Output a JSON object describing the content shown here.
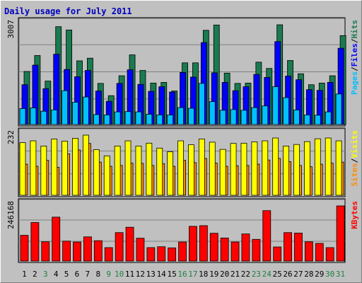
{
  "title": "Daily usage for July 2011",
  "colors": {
    "title": "#0000c0",
    "bg": "#c0c0c0",
    "panel": "#c0c0c0",
    "hits": "#1a7a50",
    "files": "#0000ff",
    "pages": "#00c0ff",
    "visits": "#ffff00",
    "sites": "#ff8c00",
    "kbytes": "#ff0000",
    "day_black": "#000000",
    "day_green": "#208040"
  },
  "chart_data": [
    {
      "type": "bar",
      "name": "hits-files-pages",
      "ymax_label": "3007",
      "ylim": [
        0,
        3007
      ],
      "legend": [
        "Pages",
        "/",
        "Files",
        "/",
        "Hits"
      ],
      "categories": [
        "1",
        "2",
        "3",
        "4",
        "5",
        "6",
        "7",
        "8",
        "9",
        "10",
        "11",
        "12",
        "13",
        "14",
        "15",
        "16",
        "17",
        "18",
        "19",
        "20",
        "21",
        "22",
        "23",
        "24",
        "25",
        "26",
        "27",
        "28",
        "29",
        "30",
        "31"
      ],
      "series": [
        {
          "name": "Hits",
          "values": [
            1600,
            2080,
            1310,
            2950,
            2850,
            1920,
            2000,
            1240,
            870,
            1470,
            2100,
            1630,
            1250,
            1270,
            1010,
            1860,
            1860,
            2840,
            3000,
            1550,
            1240,
            1250,
            1880,
            1690,
            3007,
            1930,
            1530,
            1200,
            1250,
            1470,
            2680
          ]
        },
        {
          "name": "Files",
          "values": [
            1200,
            1790,
            1080,
            2120,
            1660,
            1440,
            1630,
            1010,
            700,
            1240,
            1650,
            1210,
            1000,
            1140,
            980,
            1570,
            1430,
            2470,
            1560,
            1270,
            1020,
            1140,
            1510,
            1420,
            2500,
            1460,
            1350,
            1050,
            1030,
            1270,
            2300
          ]
        },
        {
          "name": "Pages",
          "values": [
            480,
            500,
            400,
            440,
            1020,
            670,
            830,
            300,
            290,
            380,
            390,
            380,
            310,
            290,
            290,
            510,
            490,
            1240,
            690,
            430,
            450,
            430,
            510,
            560,
            1140,
            810,
            440,
            290,
            280,
            380,
            920
          ]
        }
      ]
    },
    {
      "type": "bar",
      "name": "visits-sites",
      "ymax_label": "232",
      "ylim": [
        0,
        232
      ],
      "legend": [
        "Sites",
        "/",
        "Visits"
      ],
      "categories": [
        "1",
        "2",
        "3",
        "4",
        "5",
        "6",
        "7",
        "8",
        "9",
        "10",
        "11",
        "12",
        "13",
        "14",
        "15",
        "16",
        "17",
        "18",
        "19",
        "20",
        "21",
        "22",
        "23",
        "24",
        "25",
        "26",
        "27",
        "28",
        "29",
        "30",
        "31"
      ],
      "series": [
        {
          "name": "Visits",
          "values": [
            120,
            112,
            135,
            108,
            160,
            175,
            200,
            128,
            112,
            115,
            124,
            123,
            115,
            122,
            112,
            135,
            126,
            142,
            124,
            112,
            114,
            115,
            120,
            136,
            142,
            130,
            115,
            110,
            120,
            124,
            128
          ]
        },
        {
          "name": "Sites",
          "values": [
            203,
            210,
            190,
            217,
            209,
            220,
            232,
            176,
            152,
            190,
            210,
            190,
            201,
            182,
            168,
            210,
            195,
            217,
            205,
            177,
            200,
            201,
            206,
            210,
            221,
            190,
            196,
            207,
            218,
            221,
            210
          ]
        }
      ]
    },
    {
      "type": "bar",
      "name": "kbytes",
      "ymax_label": "246168",
      "ylim": [
        0,
        246168
      ],
      "legend": [
        "KBytes"
      ],
      "categories": [
        "1",
        "2",
        "3",
        "4",
        "5",
        "6",
        "7",
        "8",
        "9",
        "10",
        "11",
        "12",
        "13",
        "14",
        "15",
        "16",
        "17",
        "18",
        "19",
        "20",
        "21",
        "22",
        "23",
        "24",
        "25",
        "26",
        "27",
        "28",
        "29",
        "30",
        "31"
      ],
      "series": [
        {
          "name": "KBytes",
          "values": [
            115000,
            172000,
            86000,
            196000,
            89000,
            85000,
            108000,
            91000,
            60000,
            127000,
            151000,
            102000,
            60000,
            64000,
            59000,
            85000,
            155000,
            158000,
            124000,
            103000,
            85000,
            121000,
            97000,
            225000,
            63000,
            127000,
            125000,
            86000,
            79000,
            60000,
            246168
          ]
        }
      ]
    }
  ],
  "days": [
    {
      "label": "1",
      "color": "day_black"
    },
    {
      "label": "2",
      "color": "day_black"
    },
    {
      "label": "3",
      "color": "day_green"
    },
    {
      "label": "4",
      "color": "day_black"
    },
    {
      "label": "5",
      "color": "day_black"
    },
    {
      "label": "6",
      "color": "day_black"
    },
    {
      "label": "7",
      "color": "day_black"
    },
    {
      "label": "8",
      "color": "day_black"
    },
    {
      "label": "9",
      "color": "day_green"
    },
    {
      "label": "10",
      "color": "day_green"
    },
    {
      "label": "11",
      "color": "day_black"
    },
    {
      "label": "12",
      "color": "day_black"
    },
    {
      "label": "13",
      "color": "day_black"
    },
    {
      "label": "14",
      "color": "day_black"
    },
    {
      "label": "15",
      "color": "day_black"
    },
    {
      "label": "16",
      "color": "day_green"
    },
    {
      "label": "17",
      "color": "day_green"
    },
    {
      "label": "18",
      "color": "day_black"
    },
    {
      "label": "19",
      "color": "day_black"
    },
    {
      "label": "20",
      "color": "day_black"
    },
    {
      "label": "21",
      "color": "day_black"
    },
    {
      "label": "22",
      "color": "day_black"
    },
    {
      "label": "23",
      "color": "day_green"
    },
    {
      "label": "24",
      "color": "day_green"
    },
    {
      "label": "25",
      "color": "day_black"
    },
    {
      "label": "26",
      "color": "day_black"
    },
    {
      "label": "27",
      "color": "day_black"
    },
    {
      "label": "28",
      "color": "day_black"
    },
    {
      "label": "29",
      "color": "day_black"
    },
    {
      "label": "30",
      "color": "day_green"
    },
    {
      "label": "31",
      "color": "day_green"
    }
  ]
}
